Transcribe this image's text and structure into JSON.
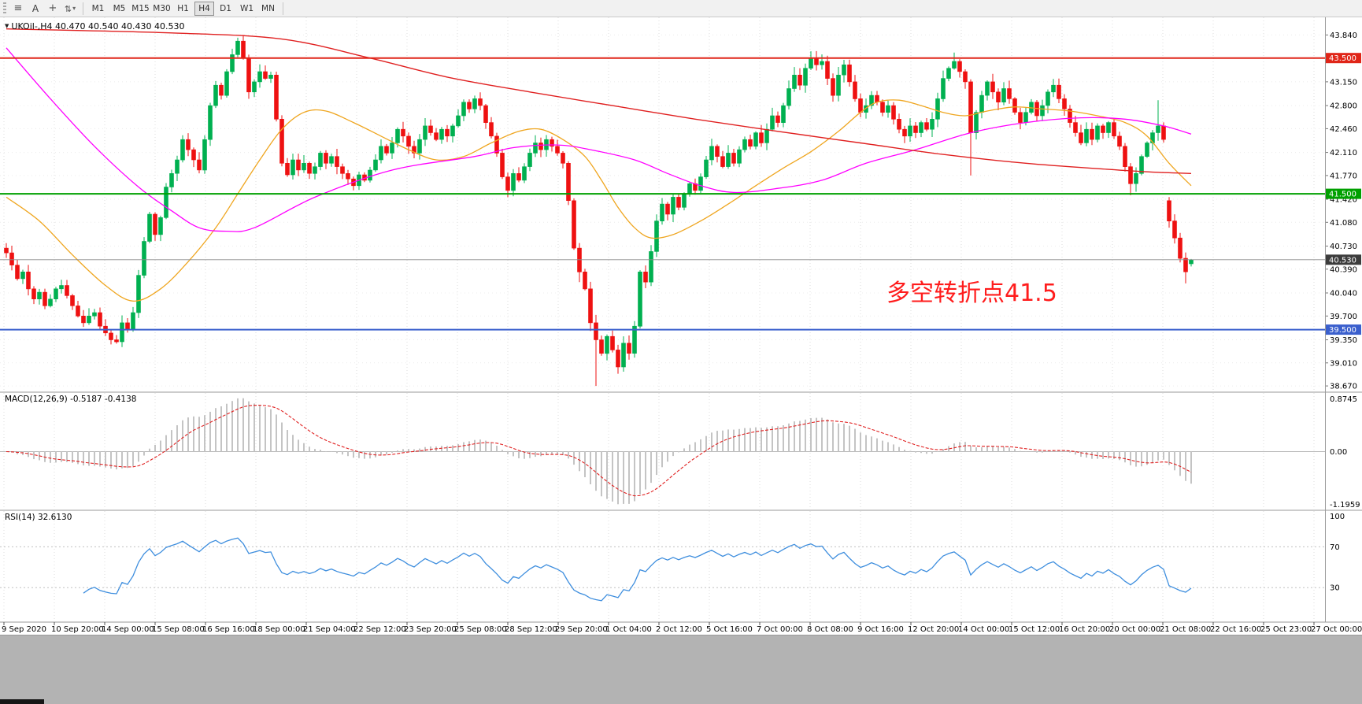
{
  "toolbar": {
    "icons": [
      "toolbar-grip",
      "chart-list-icon",
      "text-tool-icon",
      "crosshair-icon",
      "cycle-icon"
    ],
    "text_tool_label": "A",
    "timeframes": [
      "M1",
      "M5",
      "M15",
      "M30",
      "H1",
      "H4",
      "D1",
      "W1",
      "MN"
    ],
    "active": "H4"
  },
  "header": {
    "symbol_line": "UKOil-,H4 40.470 40.540 40.430 40.530"
  },
  "annotation": {
    "text": "多空转折点41.5",
    "color": "#ff1c1c"
  },
  "chart_data": {
    "type": "candlestick",
    "symbol": "UKOil",
    "timeframe": "H4",
    "last_ohlc": {
      "open": "40.470",
      "high": "40.540",
      "low": "40.430",
      "close": "40.530"
    },
    "ylim": [
      38.59,
      44.1
    ],
    "colors": {
      "bull": "#00b050",
      "bear": "#ee1111",
      "ma_red": "#e02020",
      "ma_orange": "#efa620",
      "ma_magenta": "#ff00ff",
      "hline_red": "#e02518",
      "hline_green": "#00a000",
      "hline_blue": "#3a5fcd",
      "bid": "#3c3c3c",
      "macd_hist": "#c4c4c4",
      "macd_signal": "#e02020",
      "rsi": "#3e8ede"
    },
    "price_ticks": [
      "43.840",
      "43.150",
      "42.800",
      "42.460",
      "42.110",
      "41.770",
      "41.420",
      "41.080",
      "40.730",
      "40.390",
      "40.040",
      "39.700",
      "39.350",
      "39.010",
      "38.670"
    ],
    "hlines": [
      {
        "price": 43.5,
        "label": "43.500",
        "color": "#e02518"
      },
      {
        "price": 41.5,
        "label": "41.500",
        "color": "#00a000"
      },
      {
        "price": 39.5,
        "label": "39.500",
        "color": "#3a5fcd"
      }
    ],
    "bid_line": {
      "price": 40.53,
      "label": "40.530",
      "color": "#3c3c3c"
    },
    "time_labels": [
      "9 Sep 2020",
      "10 Sep 20:00",
      "14 Sep 00:00",
      "15 Sep 08:00",
      "16 Sep 16:00",
      "18 Sep 00:00",
      "21 Sep 04:00",
      "22 Sep 12:00",
      "23 Sep 20:00",
      "25 Sep 08:00",
      "28 Sep 12:00",
      "29 Sep 20:00",
      "1 Oct 04:00",
      "2 Oct 12:00",
      "5 Oct 16:00",
      "7 Oct 00:00",
      "8 Oct 08:00",
      "9 Oct 16:00",
      "12 Oct 20:00",
      "14 Oct 00:00",
      "15 Oct 12:00",
      "16 Oct 20:00",
      "20 Oct 00:00",
      "21 Oct 08:00",
      "22 Oct 16:00",
      "25 Oct 23:00",
      "27 Oct 00:00"
    ],
    "grid": {
      "vertical": true,
      "label_spacing_px": 64
    },
    "first_open": 40.7,
    "closes": [
      40.63,
      40.45,
      40.25,
      40.35,
      40.1,
      39.95,
      40.05,
      39.85,
      39.95,
      40.1,
      40.15,
      40.0,
      39.85,
      39.7,
      39.6,
      39.7,
      39.75,
      39.55,
      39.45,
      39.35,
      39.32,
      39.6,
      39.5,
      39.75,
      40.3,
      40.8,
      41.2,
      40.9,
      41.15,
      41.6,
      41.8,
      42.0,
      42.3,
      42.15,
      42.0,
      41.85,
      42.3,
      42.8,
      43.1,
      42.95,
      43.3,
      43.55,
      43.75,
      43.5,
      43.0,
      43.15,
      43.3,
      43.2,
      43.25,
      42.6,
      41.95,
      41.78,
      42.0,
      41.85,
      41.95,
      41.8,
      41.9,
      42.1,
      41.95,
      42.05,
      41.9,
      41.8,
      41.72,
      41.62,
      41.78,
      41.7,
      41.85,
      42.0,
      42.2,
      42.1,
      42.25,
      42.45,
      42.35,
      42.2,
      42.1,
      42.3,
      42.5,
      42.4,
      42.3,
      42.45,
      42.35,
      42.5,
      42.65,
      42.85,
      42.75,
      42.9,
      42.8,
      42.55,
      42.35,
      42.1,
      41.75,
      41.55,
      41.8,
      41.7,
      41.9,
      42.1,
      42.25,
      42.15,
      42.3,
      42.2,
      42.1,
      41.95,
      41.4,
      40.7,
      40.35,
      40.1,
      39.6,
      39.35,
      39.15,
      39.4,
      39.2,
      38.95,
      39.3,
      39.15,
      39.55,
      40.35,
      40.2,
      40.65,
      41.1,
      41.35,
      41.2,
      41.45,
      41.3,
      41.5,
      41.65,
      41.55,
      41.75,
      42.0,
      42.2,
      42.05,
      41.9,
      42.1,
      41.95,
      42.15,
      42.3,
      42.2,
      42.4,
      42.25,
      42.45,
      42.65,
      42.55,
      42.8,
      43.05,
      43.25,
      43.1,
      43.35,
      43.5,
      43.4,
      43.45,
      43.2,
      42.95,
      43.25,
      43.4,
      43.15,
      42.9,
      42.7,
      42.8,
      42.95,
      42.85,
      42.7,
      42.8,
      42.6,
      42.45,
      42.35,
      42.5,
      42.4,
      42.55,
      42.45,
      42.6,
      42.9,
      43.2,
      43.35,
      43.45,
      43.3,
      43.15,
      42.4,
      42.7,
      42.95,
      43.15,
      43.0,
      42.85,
      43.05,
      42.9,
      42.7,
      42.55,
      42.7,
      42.85,
      42.65,
      42.8,
      43.0,
      43.1,
      42.9,
      42.75,
      42.55,
      42.4,
      42.25,
      42.45,
      42.3,
      42.5,
      42.4,
      42.55,
      42.35,
      42.2,
      41.9,
      41.65,
      41.8,
      42.05,
      42.25,
      42.4,
      42.5,
      42.3,
      41.1,
      40.85,
      40.55,
      40.35,
      40.53
    ],
    "overrides": {
      "42": {
        "high": 43.8
      },
      "43": {
        "high": 43.84
      },
      "63": {
        "low": 41.55
      },
      "91": {
        "low": 41.45
      },
      "104": {
        "low": 40.2
      },
      "107": {
        "low": 38.67
      },
      "111": {
        "low": 38.85
      },
      "146": {
        "high": 43.6
      },
      "172": {
        "high": 43.58
      },
      "175": {
        "low": 41.77
      },
      "204": {
        "low": 41.48
      },
      "209": {
        "high": 42.88
      },
      "211": {
        "open": 41.4
      },
      "214": {
        "low": 40.18
      },
      "215": {
        "open": 40.47,
        "high": 40.54,
        "low": 40.43,
        "close": 40.53
      }
    },
    "ma_red": [
      [
        0,
        43.93
      ],
      [
        30,
        43.87
      ],
      [
        50,
        43.78
      ],
      [
        66,
        43.5
      ],
      [
        80,
        43.22
      ],
      [
        95,
        43.0
      ],
      [
        110,
        42.8
      ],
      [
        125,
        42.6
      ],
      [
        140,
        42.42
      ],
      [
        155,
        42.25
      ],
      [
        170,
        42.08
      ],
      [
        185,
        41.95
      ],
      [
        200,
        41.86
      ],
      [
        208,
        41.82
      ],
      [
        215,
        41.8
      ]
    ],
    "ma_magenta": [
      [
        0,
        43.65
      ],
      [
        8,
        42.9
      ],
      [
        16,
        42.2
      ],
      [
        24,
        41.6
      ],
      [
        30,
        41.25
      ],
      [
        35,
        41.0
      ],
      [
        40,
        40.95
      ],
      [
        45,
        41.0
      ],
      [
        56,
        41.45
      ],
      [
        70,
        41.85
      ],
      [
        85,
        42.05
      ],
      [
        92,
        42.18
      ],
      [
        100,
        42.22
      ],
      [
        106,
        42.15
      ],
      [
        114,
        42.0
      ],
      [
        120,
        41.8
      ],
      [
        126,
        41.62
      ],
      [
        132,
        41.52
      ],
      [
        140,
        41.58
      ],
      [
        148,
        41.7
      ],
      [
        156,
        41.95
      ],
      [
        165,
        42.15
      ],
      [
        175,
        42.4
      ],
      [
        185,
        42.55
      ],
      [
        195,
        42.62
      ],
      [
        203,
        42.6
      ],
      [
        210,
        42.5
      ],
      [
        215,
        42.38
      ]
    ],
    "ma_orange": [
      [
        0,
        41.45
      ],
      [
        6,
        41.1
      ],
      [
        12,
        40.6
      ],
      [
        18,
        40.15
      ],
      [
        23,
        39.92
      ],
      [
        28,
        40.1
      ],
      [
        33,
        40.5
      ],
      [
        38,
        41.0
      ],
      [
        42,
        41.5
      ],
      [
        46,
        42.0
      ],
      [
        50,
        42.45
      ],
      [
        54,
        42.7
      ],
      [
        58,
        42.72
      ],
      [
        63,
        42.55
      ],
      [
        68,
        42.35
      ],
      [
        73,
        42.15
      ],
      [
        78,
        42.0
      ],
      [
        83,
        42.05
      ],
      [
        88,
        42.25
      ],
      [
        93,
        42.42
      ],
      [
        97,
        42.45
      ],
      [
        101,
        42.3
      ],
      [
        105,
        42.05
      ],
      [
        108,
        41.7
      ],
      [
        111,
        41.3
      ],
      [
        114,
        41.0
      ],
      [
        117,
        40.85
      ],
      [
        121,
        40.9
      ],
      [
        126,
        41.1
      ],
      [
        131,
        41.35
      ],
      [
        136,
        41.62
      ],
      [
        141,
        41.88
      ],
      [
        146,
        42.12
      ],
      [
        151,
        42.42
      ],
      [
        155,
        42.7
      ],
      [
        158,
        42.85
      ],
      [
        162,
        42.88
      ],
      [
        166,
        42.8
      ],
      [
        170,
        42.7
      ],
      [
        174,
        42.65
      ],
      [
        178,
        42.72
      ],
      [
        183,
        42.78
      ],
      [
        188,
        42.75
      ],
      [
        193,
        42.72
      ],
      [
        198,
        42.65
      ],
      [
        203,
        42.55
      ],
      [
        207,
        42.35
      ],
      [
        211,
        41.95
      ],
      [
        215,
        41.62
      ]
    ],
    "indicators": {
      "macd": {
        "label": "MACD(12,26,9) -0.5187 -0.4138",
        "params": [
          12,
          26,
          9
        ],
        "axis_labels": [
          "0.8745",
          "0.00",
          "-1.1959"
        ]
      },
      "rsi": {
        "label": "RSI(14) 32.6130",
        "period": 14,
        "axis_labels": [
          "100",
          "70",
          "30"
        ],
        "levels": [
          30,
          70
        ]
      }
    }
  }
}
